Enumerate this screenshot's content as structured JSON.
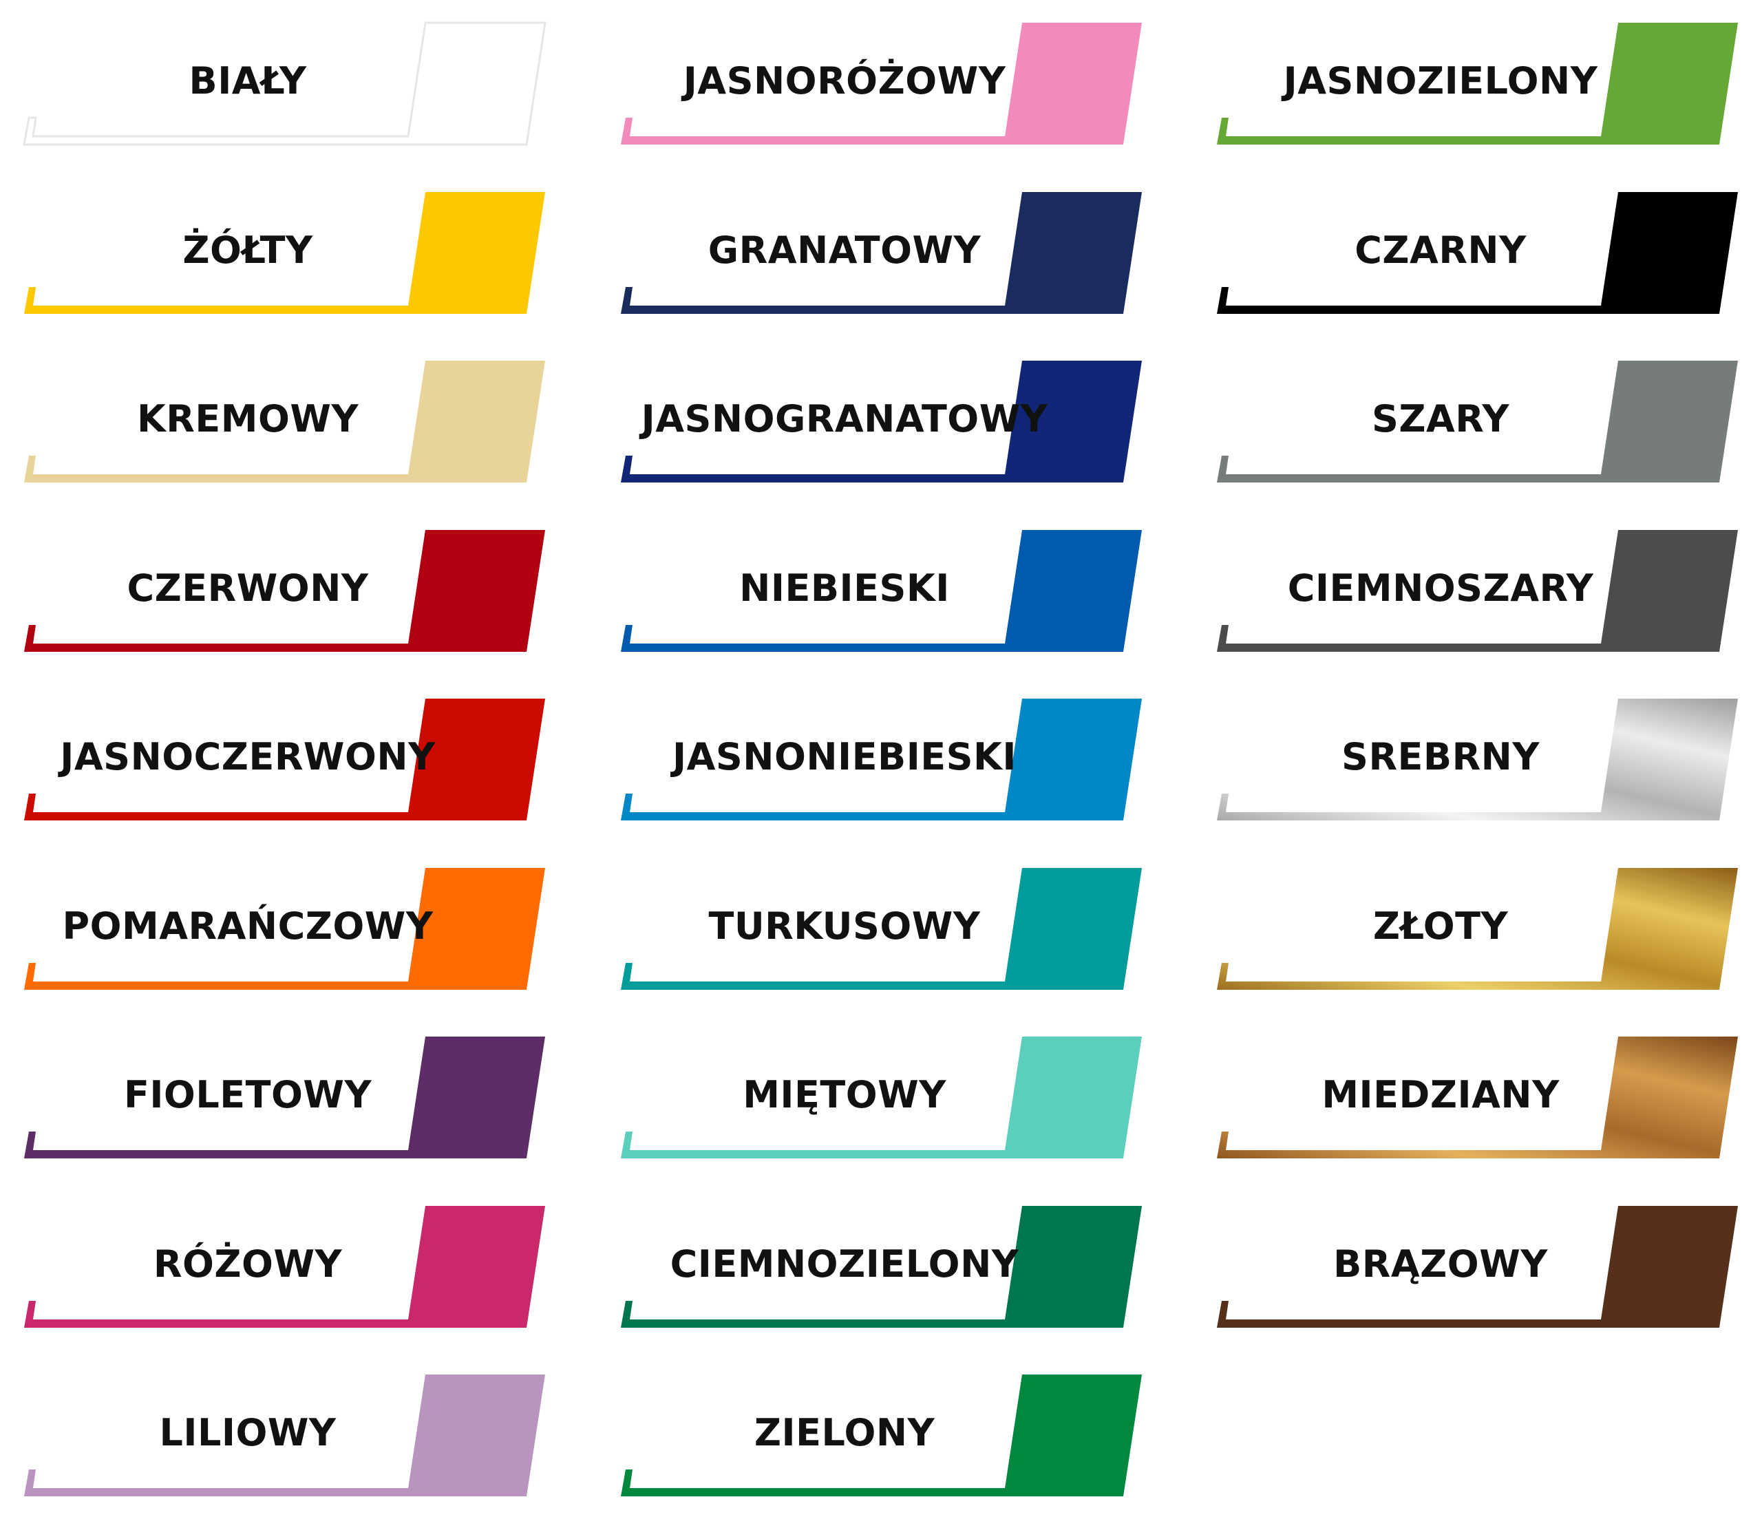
{
  "swatches": [
    {
      "name": "BIAŁY",
      "color": "#ffffff",
      "outline": "#e6e6e6"
    },
    {
      "name": "JASNORÓŻOWY",
      "color": "#f28bbb"
    },
    {
      "name": "JASNOZIELONY",
      "color": "#66a835"
    },
    {
      "name": "ŻÓŁTY",
      "color": "#fec800"
    },
    {
      "name": "GRANATOWY",
      "color": "#1a2c5e"
    },
    {
      "name": "CZARNY",
      "color": "#000000"
    },
    {
      "name": "KREMOWY",
      "color": "#e8d49a"
    },
    {
      "name": "JASNOGRANATOWY",
      "color": "#112676"
    },
    {
      "name": "SZARY",
      "color": "#757c79"
    },
    {
      "name": "CZERWONY",
      "color": "#b1000f"
    },
    {
      "name": "NIEBIESKI",
      "color": "#005bae"
    },
    {
      "name": "CIEMNOSZARY",
      "color": "#4b4d4b"
    },
    {
      "name": "JASNOCZERWONY",
      "color": "#cd0a00"
    },
    {
      "name": "JASNONIEBIESKI",
      "color": "#0087c7"
    },
    {
      "name": "SREBRNY",
      "color": "#c8c8c8",
      "gradient": [
        "#a9a9a9",
        "#f4f4f4",
        "#b3b3b3",
        "#ececec",
        "#9d9d9d"
      ]
    },
    {
      "name": "POMARAŃCZOWY",
      "color": "#ff6b00"
    },
    {
      "name": "TURKUSOWY",
      "color": "#009b9b"
    },
    {
      "name": "ZŁOTY",
      "color": "#c9a035",
      "gradient": [
        "#9b6e1e",
        "#ecd069",
        "#b98a26",
        "#e7c459",
        "#8a5e16"
      ]
    },
    {
      "name": "FIOLETOWY",
      "color": "#5e2d68"
    },
    {
      "name": "MIĘTOWY",
      "color": "#5ccfbc"
    },
    {
      "name": "MIEDZIANY",
      "color": "#b27a3c",
      "gradient": [
        "#8e5420",
        "#e6b15c",
        "#a76a2c",
        "#d59c4d",
        "#7b451a"
      ]
    },
    {
      "name": "RÓŻOWY",
      "color": "#c9286a"
    },
    {
      "name": "CIEMNOZIELONY",
      "color": "#007650"
    },
    {
      "name": "BRĄZOWY",
      "color": "#56301a"
    },
    {
      "name": "LILIOWY",
      "color": "#b894be"
    },
    {
      "name": "ZIELONY",
      "color": "#00883f"
    }
  ]
}
